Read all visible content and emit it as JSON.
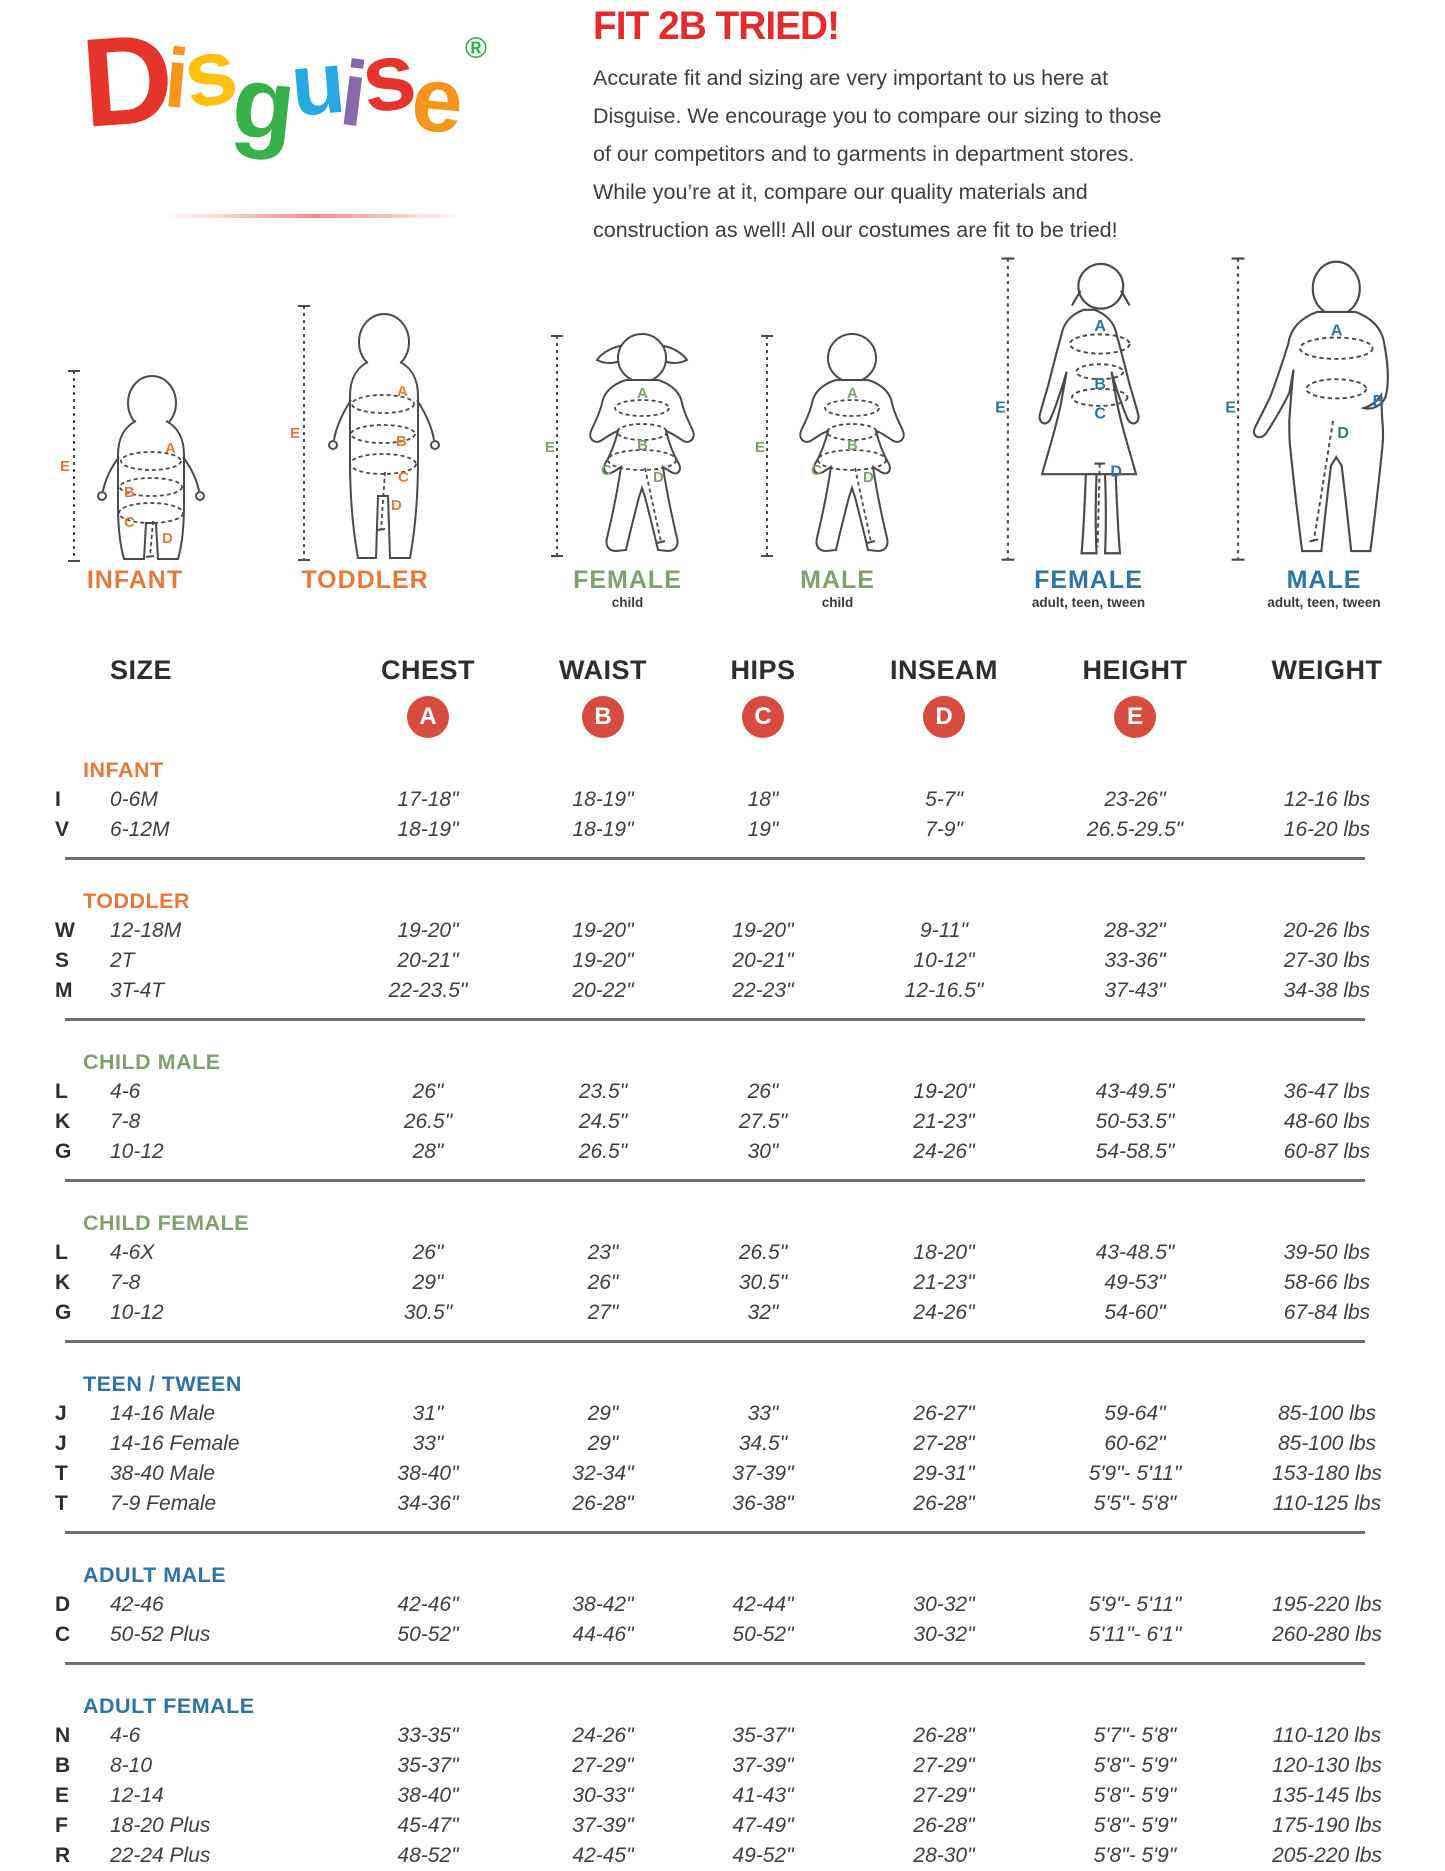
{
  "logo": {
    "letters": [
      {
        "ch": "D",
        "color": "#E5342B"
      },
      {
        "ch": "i",
        "color": "#F7941E"
      },
      {
        "ch": "s",
        "color": "#FDC00F"
      },
      {
        "ch": "g",
        "color": "#39B04A"
      },
      {
        "ch": "u",
        "color": "#29A9E1"
      },
      {
        "ch": "i",
        "color": "#8A68AE"
      },
      {
        "ch": "s",
        "color": "#E5342B"
      },
      {
        "ch": "e",
        "color": "#F7941E"
      }
    ],
    "registered": "®",
    "registered_color": "#39B04A"
  },
  "intro": {
    "title": "FIT 2B TRIED!",
    "body": "Accurate fit and sizing are very important to us here at Disguise. We encourage you to compare our sizing to those of our competitors and to garments in department stores. While you’re at it, compare our quality materials and construction as well! All our costumes are fit to be tried!"
  },
  "palette": {
    "orange": "#E8793B",
    "green": "#7FA16F",
    "blue": "#2E74A4",
    "badge_red": "#D84B3F",
    "title_red": "#E42A2C"
  },
  "measure_letters": [
    "A",
    "B",
    "C",
    "D",
    "E"
  ],
  "figures": [
    {
      "label": "INFANT",
      "sublabel": "",
      "color": "orange"
    },
    {
      "label": "TODDLER",
      "sublabel": "",
      "color": "orange"
    },
    {
      "label": "FEMALE",
      "sublabel": "child",
      "color": "green"
    },
    {
      "label": "MALE",
      "sublabel": "child",
      "color": "green"
    },
    {
      "label": "FEMALE",
      "sublabel": "adult, teen, tween",
      "color": "blue"
    },
    {
      "label": "MALE",
      "sublabel": "adult, teen, tween",
      "color": "blue"
    }
  ],
  "table": {
    "columns": [
      "SIZE",
      "CHEST",
      "WAIST",
      "HIPS",
      "INSEAM",
      "HEIGHT",
      "WEIGHT"
    ],
    "sections": [
      {
        "heading": "INFANT",
        "color": "orange",
        "rows": [
          {
            "code": "I",
            "size": "0-6M",
            "chest": "17-18\"",
            "waist": "18-19\"",
            "hips": "18\"",
            "inseam": "5-7\"",
            "height": "23-26\"",
            "weight": "12-16 lbs"
          },
          {
            "code": "V",
            "size": "6-12M",
            "chest": "18-19\"",
            "waist": "18-19\"",
            "hips": "19\"",
            "inseam": "7-9\"",
            "height": "26.5-29.5\"",
            "weight": "16-20 lbs"
          }
        ]
      },
      {
        "heading": "TODDLER",
        "color": "orange",
        "rows": [
          {
            "code": "W",
            "size": "12-18M",
            "chest": "19-20\"",
            "waist": "19-20\"",
            "hips": "19-20\"",
            "inseam": "9-11\"",
            "height": "28-32\"",
            "weight": "20-26 lbs"
          },
          {
            "code": "S",
            "size": "2T",
            "chest": "20-21\"",
            "waist": "19-20\"",
            "hips": "20-21\"",
            "inseam": "10-12\"",
            "height": "33-36\"",
            "weight": "27-30 lbs"
          },
          {
            "code": "M",
            "size": "3T-4T",
            "chest": "22-23.5\"",
            "waist": "20-22\"",
            "hips": "22-23\"",
            "inseam": "12-16.5\"",
            "height": "37-43\"",
            "weight": "34-38 lbs"
          }
        ]
      },
      {
        "heading": "CHILD MALE",
        "color": "green",
        "rows": [
          {
            "code": "L",
            "size": "4-6",
            "chest": "26\"",
            "waist": "23.5\"",
            "hips": "26\"",
            "inseam": "19-20\"",
            "height": "43-49.5\"",
            "weight": "36-47 lbs"
          },
          {
            "code": "K",
            "size": "7-8",
            "chest": "26.5\"",
            "waist": "24.5\"",
            "hips": "27.5\"",
            "inseam": "21-23\"",
            "height": "50-53.5\"",
            "weight": "48-60 lbs"
          },
          {
            "code": "G",
            "size": "10-12",
            "chest": "28\"",
            "waist": "26.5\"",
            "hips": "30\"",
            "inseam": "24-26\"",
            "height": "54-58.5\"",
            "weight": "60-87 lbs"
          }
        ]
      },
      {
        "heading": "CHILD FEMALE",
        "color": "green",
        "rows": [
          {
            "code": "L",
            "size": "4-6X",
            "chest": "26\"",
            "waist": "23\"",
            "hips": "26.5\"",
            "inseam": "18-20\"",
            "height": "43-48.5\"",
            "weight": "39-50 lbs"
          },
          {
            "code": "K",
            "size": "7-8",
            "chest": "29\"",
            "waist": "26\"",
            "hips": "30.5\"",
            "inseam": "21-23\"",
            "height": "49-53\"",
            "weight": "58-66 lbs"
          },
          {
            "code": "G",
            "size": "10-12",
            "chest": "30.5\"",
            "waist": "27\"",
            "hips": "32\"",
            "inseam": "24-26\"",
            "height": "54-60\"",
            "weight": "67-84 lbs"
          }
        ]
      },
      {
        "heading": "TEEN / TWEEN",
        "color": "blue",
        "rows": [
          {
            "code": "J",
            "size": "14-16 Male",
            "chest": "31\"",
            "waist": "29\"",
            "hips": "33\"",
            "inseam": "26-27\"",
            "height": "59-64\"",
            "weight": "85-100 lbs"
          },
          {
            "code": "J",
            "size": "14-16 Female",
            "chest": "33\"",
            "waist": "29\"",
            "hips": "34.5\"",
            "inseam": "27-28\"",
            "height": "60-62\"",
            "weight": "85-100 lbs"
          },
          {
            "code": "T",
            "size": "38-40 Male",
            "chest": "38-40\"",
            "waist": "32-34\"",
            "hips": "37-39\"",
            "inseam": "29-31\"",
            "height": "5'9\"- 5'11\"",
            "weight": "153-180 lbs"
          },
          {
            "code": "T",
            "size": "7-9 Female",
            "chest": "34-36\"",
            "waist": "26-28\"",
            "hips": "36-38\"",
            "inseam": "26-28\"",
            "height": "5'5\"- 5'8\"",
            "weight": "110-125 lbs"
          }
        ]
      },
      {
        "heading": "ADULT MALE",
        "color": "blue",
        "rows": [
          {
            "code": "D",
            "size": "42-46",
            "chest": "42-46\"",
            "waist": "38-42\"",
            "hips": "42-44\"",
            "inseam": "30-32\"",
            "height": "5'9\"- 5'11\"",
            "weight": "195-220 lbs"
          },
          {
            "code": "C",
            "size": "50-52 Plus",
            "chest": "50-52\"",
            "waist": "44-46\"",
            "hips": "50-52\"",
            "inseam": "30-32\"",
            "height": "5'11\"- 6'1\"",
            "weight": "260-280 lbs"
          }
        ]
      },
      {
        "heading": "ADULT FEMALE",
        "color": "blue",
        "rows": [
          {
            "code": "N",
            "size": "4-6",
            "chest": "33-35\"",
            "waist": "24-26\"",
            "hips": "35-37\"",
            "inseam": "26-28\"",
            "height": "5'7\"- 5'8\"",
            "weight": "110-120 lbs"
          },
          {
            "code": "B",
            "size": "8-10",
            "chest": "35-37\"",
            "waist": "27-29\"",
            "hips": "37-39\"",
            "inseam": "27-29\"",
            "height": "5'8\"- 5'9\"",
            "weight": "120-130 lbs"
          },
          {
            "code": "E",
            "size": "12-14",
            "chest": "38-40\"",
            "waist": "30-33\"",
            "hips": "41-43\"",
            "inseam": "27-29\"",
            "height": "5'8\"- 5'9\"",
            "weight": "135-145 lbs"
          },
          {
            "code": "F",
            "size": "18-20 Plus",
            "chest": "45-47\"",
            "waist": "37-39\"",
            "hips": "47-49\"",
            "inseam": "26-28\"",
            "height": "5'8\"- 5'9\"",
            "weight": "175-190 lbs"
          },
          {
            "code": "R",
            "size": "22-24 Plus",
            "chest": "48-52\"",
            "waist": "42-45\"",
            "hips": "49-52\"",
            "inseam": "28-30\"",
            "height": "5'8\"- 5'9\"",
            "weight": "205-220 lbs"
          }
        ]
      }
    ]
  }
}
